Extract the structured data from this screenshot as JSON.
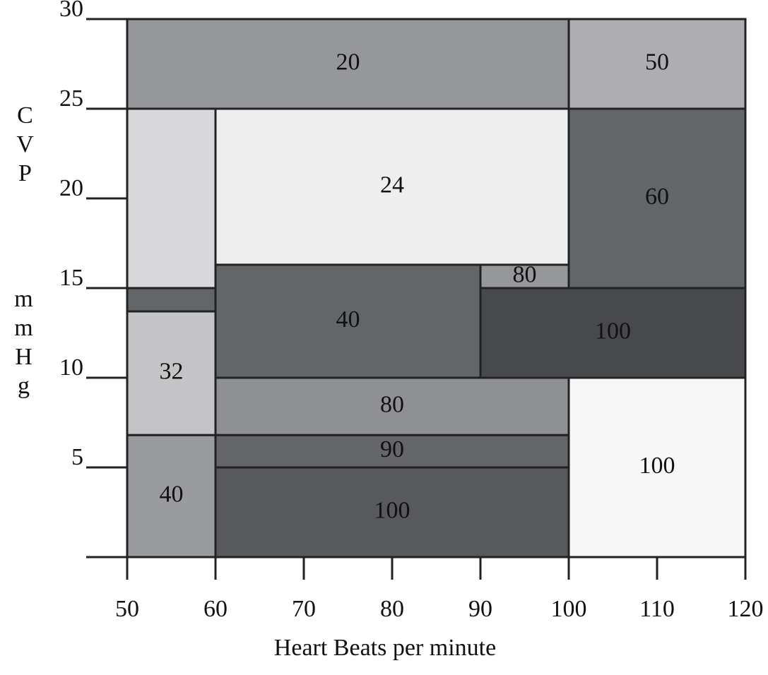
{
  "chart_data": {
    "type": "region",
    "xlabel": "Heart Beats per minute",
    "ylabel": [
      "CVP",
      "mmHg"
    ],
    "xlim": [
      50,
      120
    ],
    "xticks": [
      50,
      60,
      70,
      80,
      90,
      100,
      110,
      120
    ],
    "ylim": [
      0,
      30
    ],
    "yticks": [
      5,
      10,
      15,
      20,
      25,
      30
    ],
    "regions": [
      {
        "x0": 50,
        "x1": 100,
        "y0": 25,
        "y1": 30,
        "value": 20,
        "color": "#96979b"
      },
      {
        "x0": 100,
        "x1": 120,
        "y0": 25,
        "y1": 30,
        "value": 50,
        "color": "#aeaeb2"
      },
      {
        "x0": 50,
        "x1": 60,
        "y0": 15,
        "y1": 25,
        "value": null,
        "color": "#d8d8da"
      },
      {
        "x0": 60,
        "x1": 100,
        "y0": 16.3,
        "y1": 25,
        "value": 24,
        "color": "#eeeeee"
      },
      {
        "x0": 100,
        "x1": 120,
        "y0": 15,
        "y1": 25,
        "value": 60,
        "color": "#636669"
      },
      {
        "x0": 90,
        "x1": 100,
        "y0": 15,
        "y1": 16.3,
        "value": 80,
        "color": "#96979b"
      },
      {
        "x0": 50,
        "x1": 60,
        "y0": 13.7,
        "y1": 15,
        "value": null,
        "color": "#636669"
      },
      {
        "x0": 60,
        "x1": 90,
        "y0": 10,
        "y1": 16.3,
        "value": 40,
        "color": "#636669"
      },
      {
        "x0": 90,
        "x1": 120,
        "y0": 10,
        "y1": 15,
        "value": 100,
        "color": "#48494d"
      },
      {
        "x0": 50,
        "x1": 60,
        "y0": 6.8,
        "y1": 13.7,
        "value": 32,
        "color": "#c4c4c6"
      },
      {
        "x0": 60,
        "x1": 100,
        "y0": 6.8,
        "y1": 10,
        "value": 80,
        "color": "#8f9094"
      },
      {
        "x0": 100,
        "x1": 120,
        "y0": 0,
        "y1": 10,
        "value": 100,
        "color": "#f7f7f7"
      },
      {
        "x0": 50,
        "x1": 60,
        "y0": 0,
        "y1": 6.8,
        "value": 40,
        "color": "#9a9b9e"
      },
      {
        "x0": 60,
        "x1": 100,
        "y0": 5,
        "y1": 6.8,
        "value": 90,
        "color": "#646669"
      },
      {
        "x0": 60,
        "x1": 100,
        "y0": 0,
        "y1": 5,
        "value": 100,
        "color": "#58595c"
      }
    ]
  }
}
